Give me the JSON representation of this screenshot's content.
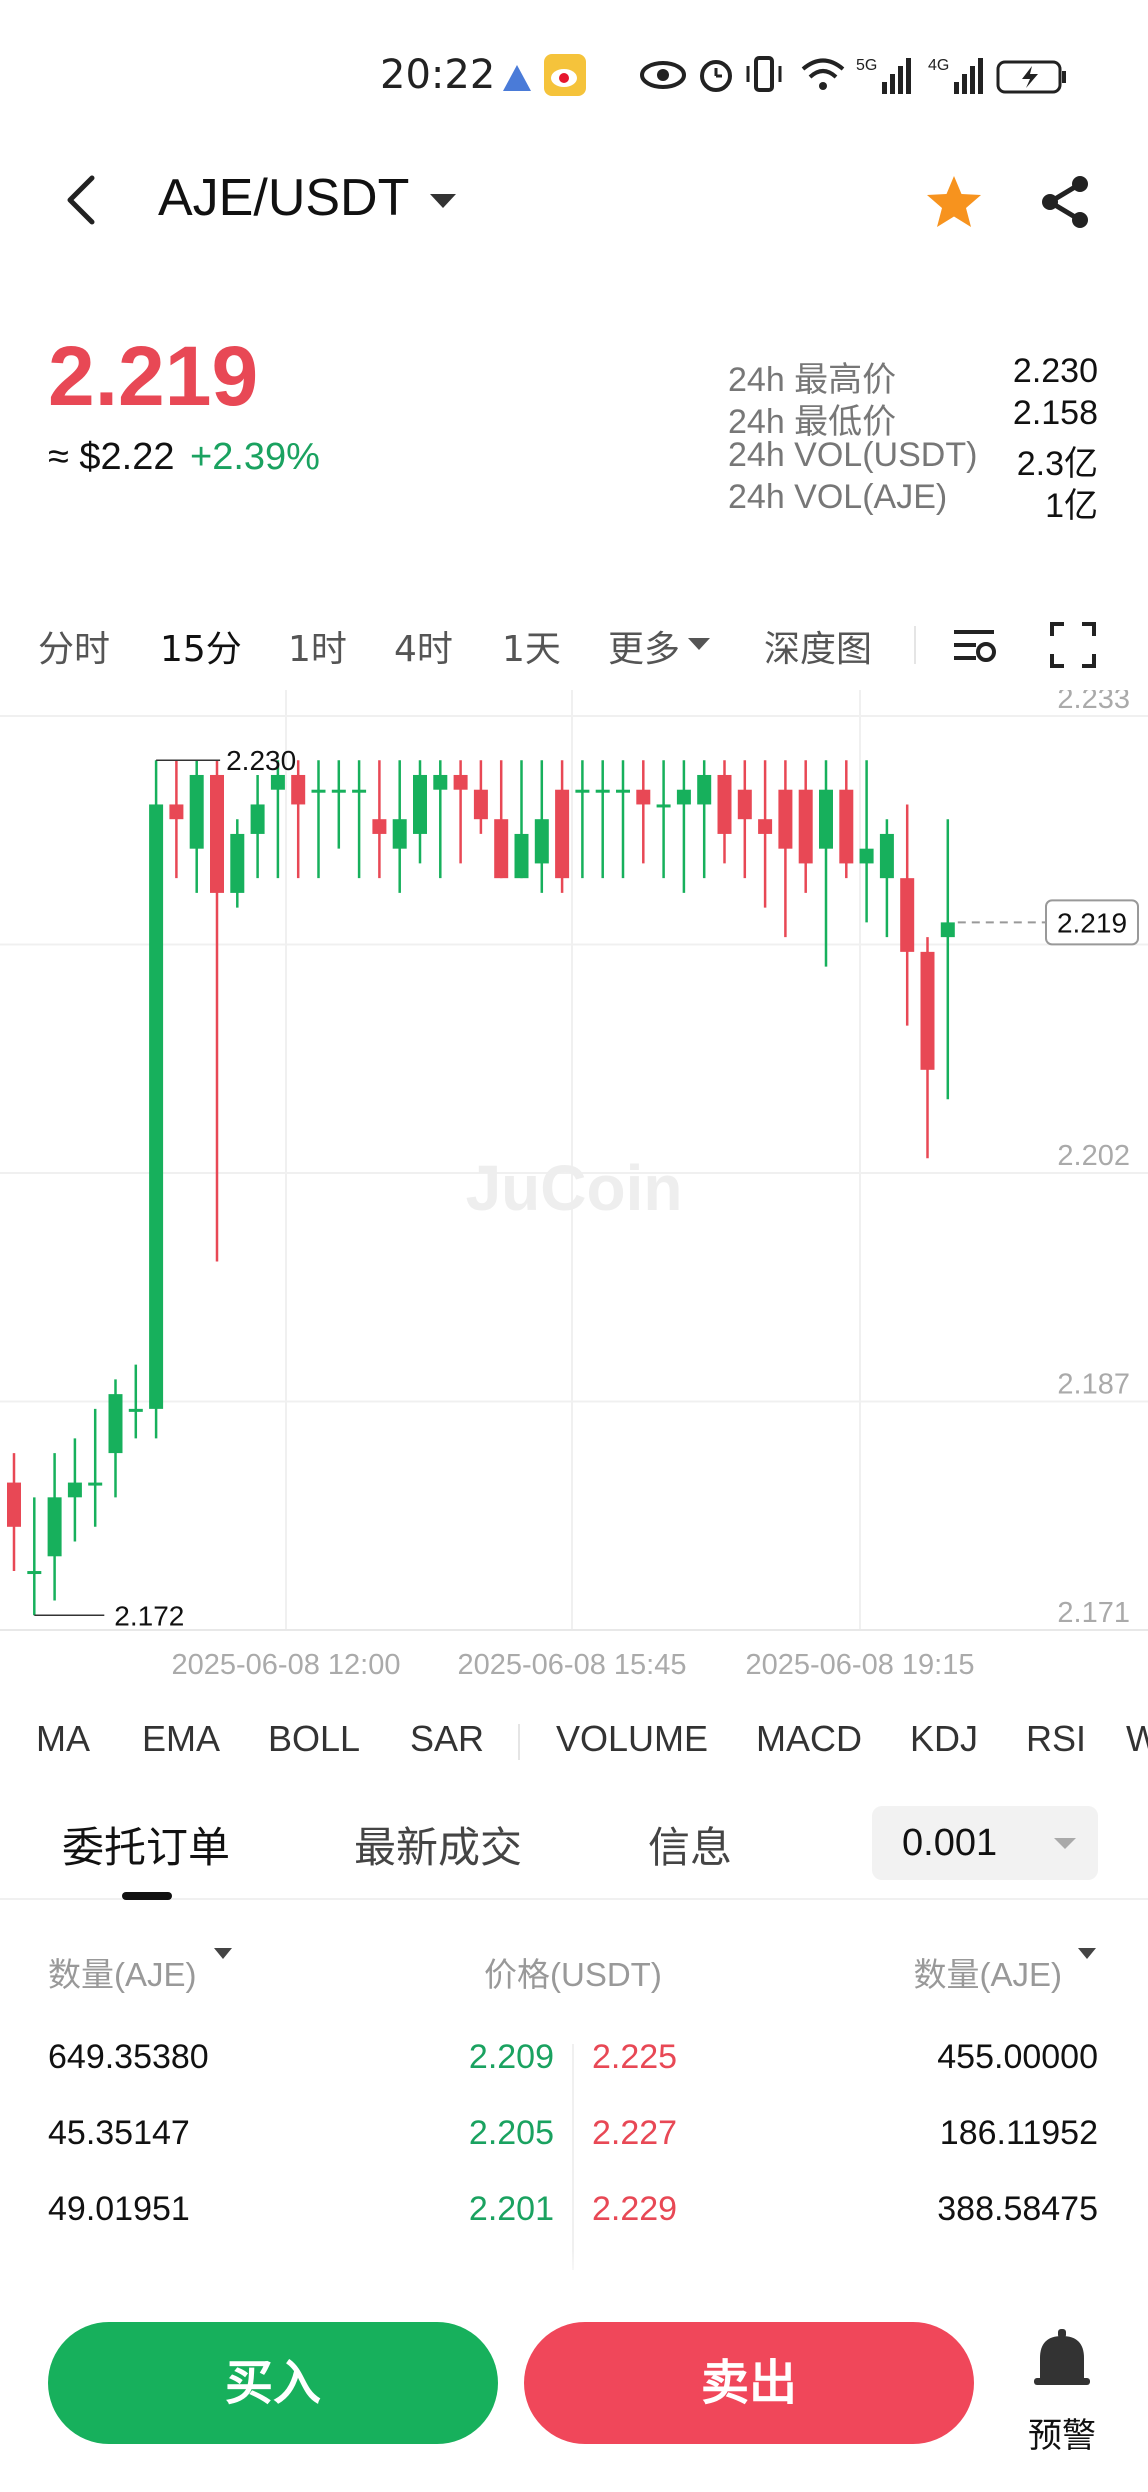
{
  "status_bar": {
    "time": "20:22",
    "icons": [
      "location-icon",
      "weibo-icon",
      "eye-icon",
      "alarm-icon",
      "vibrate-icon",
      "wifi-icon",
      "signal-5g-icon",
      "signal-4g-icon",
      "battery-icon"
    ]
  },
  "header": {
    "pair": "AJE/USDT",
    "icons": [
      "back-icon",
      "chevron-down-icon",
      "star-icon",
      "share-icon"
    ]
  },
  "price": {
    "last": "2.219",
    "usd": "≈ $2.22",
    "change": "+2.39%"
  },
  "stats": [
    {
      "label": "24h 最高价",
      "value": "2.230"
    },
    {
      "label": "24h 最低价",
      "value": "2.158"
    },
    {
      "label": "24h VOL(USDT)",
      "value": "2.3亿"
    },
    {
      "label": "24h VOL(AJE)",
      "value": "1亿"
    }
  ],
  "timeframes": [
    {
      "label": "分时"
    },
    {
      "label": "15分",
      "active": true
    },
    {
      "label": "1时"
    },
    {
      "label": "4时"
    },
    {
      "label": "1天"
    },
    {
      "label": "更多"
    },
    {
      "label": "深度图"
    }
  ],
  "chart_data": {
    "type": "candlestick",
    "watermark": "JuCoin",
    "y_ticks": [
      "2.233",
      "2.218",
      "2.202",
      "2.187",
      "2.171"
    ],
    "ylim": [
      2.171,
      2.233
    ],
    "x_ticks": [
      "2025-06-08 12:00",
      "2025-06-08 15:45",
      "2025-06-08 19:15"
    ],
    "high_label": "2.230",
    "low_label": "2.172",
    "current_label": "2.219",
    "colors": {
      "up": "#17b05c",
      "down": "#e84855"
    },
    "candles": [
      {
        "o": 2.181,
        "h": 2.183,
        "l": 2.175,
        "c": 2.178
      },
      {
        "o": 2.175,
        "h": 2.18,
        "l": 2.172,
        "c": 2.175
      },
      {
        "o": 2.176,
        "h": 2.183,
        "l": 2.173,
        "c": 2.18
      },
      {
        "o": 2.18,
        "h": 2.184,
        "l": 2.177,
        "c": 2.181
      },
      {
        "o": 2.181,
        "h": 2.186,
        "l": 2.178,
        "c": 2.181
      },
      {
        "o": 2.183,
        "h": 2.188,
        "l": 2.18,
        "c": 2.187
      },
      {
        "o": 2.186,
        "h": 2.189,
        "l": 2.184,
        "c": 2.186
      },
      {
        "o": 2.186,
        "h": 2.23,
        "l": 2.184,
        "c": 2.227
      },
      {
        "o": 2.227,
        "h": 2.23,
        "l": 2.222,
        "c": 2.226
      },
      {
        "o": 2.224,
        "h": 2.23,
        "l": 2.221,
        "c": 2.229
      },
      {
        "o": 2.229,
        "h": 2.23,
        "l": 2.196,
        "c": 2.221
      },
      {
        "o": 2.221,
        "h": 2.226,
        "l": 2.22,
        "c": 2.225
      },
      {
        "o": 2.225,
        "h": 2.229,
        "l": 2.222,
        "c": 2.227
      },
      {
        "o": 2.228,
        "h": 2.23,
        "l": 2.222,
        "c": 2.229
      },
      {
        "o": 2.229,
        "h": 2.23,
        "l": 2.222,
        "c": 2.227
      },
      {
        "o": 2.228,
        "h": 2.23,
        "l": 2.222,
        "c": 2.228
      },
      {
        "o": 2.228,
        "h": 2.23,
        "l": 2.224,
        "c": 2.228
      },
      {
        "o": 2.228,
        "h": 2.23,
        "l": 2.222,
        "c": 2.228
      },
      {
        "o": 2.226,
        "h": 2.23,
        "l": 2.222,
        "c": 2.225
      },
      {
        "o": 2.224,
        "h": 2.23,
        "l": 2.221,
        "c": 2.226
      },
      {
        "o": 2.225,
        "h": 2.23,
        "l": 2.223,
        "c": 2.229
      },
      {
        "o": 2.228,
        "h": 2.23,
        "l": 2.222,
        "c": 2.229
      },
      {
        "o": 2.229,
        "h": 2.23,
        "l": 2.223,
        "c": 2.228
      },
      {
        "o": 2.228,
        "h": 2.23,
        "l": 2.225,
        "c": 2.226
      },
      {
        "o": 2.226,
        "h": 2.23,
        "l": 2.222,
        "c": 2.222
      },
      {
        "o": 2.222,
        "h": 2.23,
        "l": 2.222,
        "c": 2.225
      },
      {
        "o": 2.223,
        "h": 2.23,
        "l": 2.221,
        "c": 2.226
      },
      {
        "o": 2.228,
        "h": 2.23,
        "l": 2.221,
        "c": 2.222
      },
      {
        "o": 2.228,
        "h": 2.23,
        "l": 2.222,
        "c": 2.228
      },
      {
        "o": 2.228,
        "h": 2.23,
        "l": 2.222,
        "c": 2.228
      },
      {
        "o": 2.228,
        "h": 2.23,
        "l": 2.222,
        "c": 2.228
      },
      {
        "o": 2.228,
        "h": 2.23,
        "l": 2.223,
        "c": 2.227
      },
      {
        "o": 2.227,
        "h": 2.23,
        "l": 2.222,
        "c": 2.227
      },
      {
        "o": 2.227,
        "h": 2.23,
        "l": 2.221,
        "c": 2.228
      },
      {
        "o": 2.227,
        "h": 2.23,
        "l": 2.222,
        "c": 2.229
      },
      {
        "o": 2.229,
        "h": 2.23,
        "l": 2.223,
        "c": 2.225
      },
      {
        "o": 2.228,
        "h": 2.23,
        "l": 2.222,
        "c": 2.226
      },
      {
        "o": 2.226,
        "h": 2.23,
        "l": 2.22,
        "c": 2.225
      },
      {
        "o": 2.228,
        "h": 2.23,
        "l": 2.218,
        "c": 2.224
      },
      {
        "o": 2.228,
        "h": 2.23,
        "l": 2.221,
        "c": 2.223
      },
      {
        "o": 2.224,
        "h": 2.23,
        "l": 2.216,
        "c": 2.228
      },
      {
        "o": 2.228,
        "h": 2.23,
        "l": 2.222,
        "c": 2.223
      },
      {
        "o": 2.223,
        "h": 2.23,
        "l": 2.219,
        "c": 2.224
      },
      {
        "o": 2.222,
        "h": 2.226,
        "l": 2.218,
        "c": 2.225
      },
      {
        "o": 2.222,
        "h": 2.227,
        "l": 2.212,
        "c": 2.217
      },
      {
        "o": 2.217,
        "h": 2.218,
        "l": 2.203,
        "c": 2.209
      },
      {
        "o": 2.218,
        "h": 2.226,
        "l": 2.207,
        "c": 2.219
      }
    ]
  },
  "indicators": [
    "MA",
    "EMA",
    "BOLL",
    "SAR",
    "VOLUME",
    "MACD",
    "KDJ",
    "RSI",
    "W"
  ],
  "order_tabs": [
    {
      "label": "委托订单",
      "active": true
    },
    {
      "label": "最新成交"
    },
    {
      "label": "信息"
    }
  ],
  "precision": "0.001",
  "order_book": {
    "headers": {
      "left": "数量(AJE)",
      "mid": "价格(USDT)",
      "right": "数量(AJE)"
    },
    "rows": [
      {
        "bid_qty": "649.35380",
        "bid_price": "2.209",
        "ask_price": "2.225",
        "ask_qty": "455.00000"
      },
      {
        "bid_qty": "45.35147",
        "bid_price": "2.205",
        "ask_price": "2.227",
        "ask_qty": "186.11952"
      },
      {
        "bid_qty": "49.01951",
        "bid_price": "2.201",
        "ask_price": "2.229",
        "ask_qty": "388.58475"
      }
    ]
  },
  "bottom": {
    "buy": "买入",
    "sell": "卖出",
    "alert": "预警"
  }
}
